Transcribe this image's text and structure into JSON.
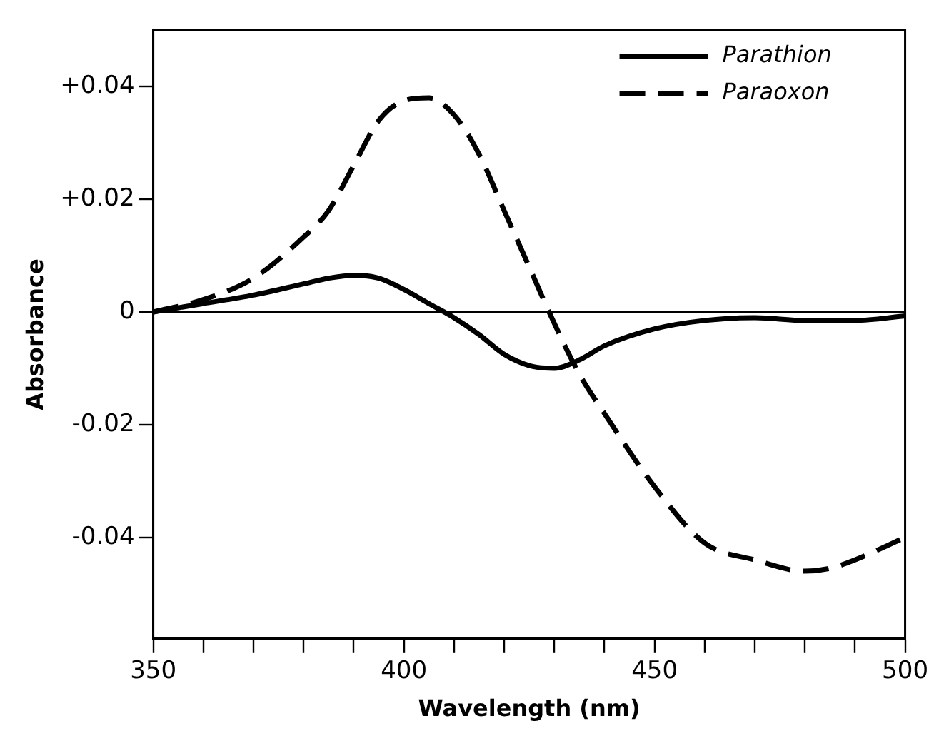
{
  "chart_data": {
    "type": "line",
    "xlabel": "Wavelength (nm)",
    "ylabel": "Absorbance",
    "x": [
      350,
      360,
      370,
      380,
      385,
      390,
      395,
      400,
      405,
      410,
      415,
      420,
      425,
      430,
      435,
      440,
      450,
      460,
      470,
      480,
      485,
      490,
      500
    ],
    "series": [
      {
        "name": "Parathion",
        "color": "#000000",
        "line_style": "solid",
        "values": [
          0,
          0.0015,
          0.003,
          0.005,
          0.006,
          0.0065,
          0.006,
          0.004,
          0.0015,
          -0.001,
          -0.004,
          -0.0075,
          -0.0095,
          -0.01,
          -0.0085,
          -0.006,
          -0.003,
          -0.0015,
          -0.001,
          -0.0015,
          -0.0015,
          -0.0015,
          -0.0007
        ]
      },
      {
        "name": "Paraoxon",
        "color": "#000000",
        "line_style": "dashed",
        "values": [
          0,
          0.0022,
          0.006,
          0.0133,
          0.018,
          0.026,
          0.034,
          0.0375,
          0.038,
          0.035,
          0.028,
          0.018,
          0.008,
          -0.002,
          -0.011,
          -0.018,
          -0.031,
          -0.041,
          -0.044,
          -0.046,
          -0.0455,
          -0.044,
          -0.04
        ]
      }
    ],
    "xlim": [
      350,
      500
    ],
    "xticks": [
      350,
      {
        "value": 360,
        "label": null
      },
      {
        "value": 370,
        "label": null
      },
      {
        "value": 380,
        "label": null
      },
      {
        "value": 390,
        "label": null
      },
      400,
      {
        "value": 410,
        "label": null
      },
      {
        "value": 420,
        "label": null
      },
      {
        "value": 430,
        "label": null
      },
      {
        "value": 440,
        "label": null
      },
      450,
      {
        "value": 460,
        "label": null
      },
      {
        "value": 470,
        "label": null
      },
      {
        "value": 480,
        "label": null
      },
      {
        "value": 490,
        "label": null
      },
      500
    ],
    "ylim": [
      -0.058,
      0.05
    ],
    "yticks": [
      {
        "value": -0.04,
        "label": "-0.04"
      },
      {
        "value": -0.02,
        "label": "-0.02"
      },
      0,
      {
        "value": 0.02,
        "label": "+0.02"
      },
      {
        "value": 0.04,
        "label": "+0.04"
      }
    ],
    "ref_lines": [
      {
        "axis": "y",
        "value": 0
      }
    ],
    "legend": "top right",
    "grid": false,
    "marker": "none"
  }
}
